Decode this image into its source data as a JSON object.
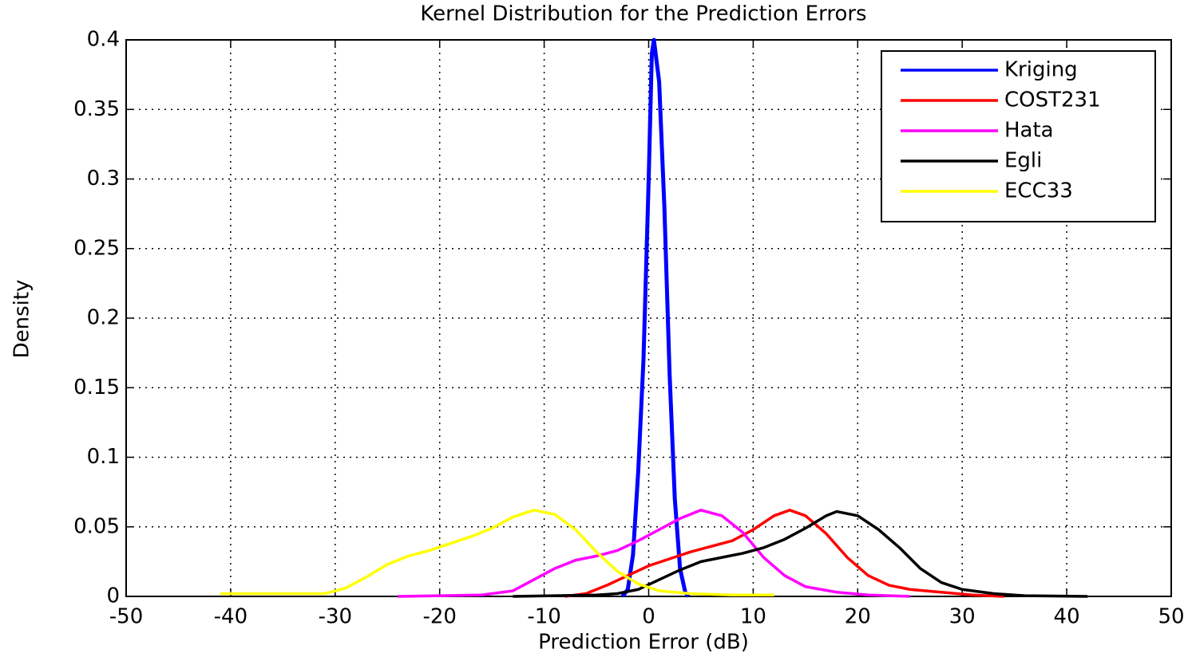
{
  "chart_data": {
    "type": "line",
    "title": "Kernel Distribution for the Prediction Errors",
    "xlabel": "Prediction Error (dB)",
    "ylabel": "Density",
    "xlim": [
      -50,
      50
    ],
    "xticks": [
      -50,
      -40,
      -30,
      -20,
      -10,
      0,
      10,
      20,
      30,
      40,
      50
    ],
    "ylim": [
      0,
      0.4
    ],
    "yticks": [
      0,
      0.05,
      0.1,
      0.15,
      0.2,
      0.25,
      0.3,
      0.35,
      0.4
    ],
    "grid": true,
    "legend": "upper right",
    "series": [
      {
        "name": "Kriging",
        "color": "#0000ff",
        "x": [
          -2.5,
          -2,
          -1.5,
          -1,
          -0.5,
          0,
          0.3,
          0.5,
          1,
          1.5,
          2,
          2.5,
          3,
          3.5,
          3.8
        ],
        "values": [
          0,
          0.005,
          0.03,
          0.09,
          0.17,
          0.3,
          0.39,
          0.4,
          0.37,
          0.28,
          0.16,
          0.07,
          0.02,
          0.003,
          0
        ]
      },
      {
        "name": "COST231",
        "color": "#ff0000",
        "x": [
          -8,
          -6,
          -4,
          -2,
          0,
          2,
          4,
          6,
          8,
          10,
          12,
          13.5,
          15,
          17,
          19,
          21,
          23,
          25,
          28,
          31,
          34
        ],
        "values": [
          0,
          0.002,
          0.008,
          0.015,
          0.022,
          0.027,
          0.032,
          0.036,
          0.04,
          0.048,
          0.058,
          0.062,
          0.058,
          0.045,
          0.028,
          0.015,
          0.008,
          0.005,
          0.003,
          0.001,
          0
        ]
      },
      {
        "name": "Hata",
        "color": "#ff00ff",
        "x": [
          -24,
          -16,
          -13,
          -11,
          -9,
          -7,
          -5,
          -3,
          -1,
          1,
          3,
          5,
          7,
          9,
          11,
          13,
          15,
          18,
          21,
          25
        ],
        "values": [
          0,
          0.001,
          0.004,
          0.012,
          0.02,
          0.026,
          0.029,
          0.033,
          0.04,
          0.048,
          0.056,
          0.062,
          0.058,
          0.046,
          0.028,
          0.015,
          0.007,
          0.003,
          0.001,
          0
        ]
      },
      {
        "name": "Egli",
        "color": "#000000",
        "x": [
          -13,
          -5,
          -3,
          -1,
          1,
          3,
          5,
          7,
          9,
          11,
          13,
          15,
          17,
          18,
          20,
          22,
          24,
          26,
          28,
          30,
          33,
          36,
          42
        ],
        "values": [
          0,
          0.001,
          0.002,
          0.005,
          0.012,
          0.019,
          0.025,
          0.028,
          0.031,
          0.035,
          0.041,
          0.049,
          0.058,
          0.061,
          0.058,
          0.048,
          0.035,
          0.02,
          0.01,
          0.005,
          0.002,
          0.0005,
          0
        ]
      },
      {
        "name": "ECC33",
        "color": "#ffff00",
        "x": [
          -41,
          -35,
          -31,
          -29,
          -27,
          -25,
          -23,
          -21,
          -19,
          -17,
          -15,
          -13,
          -11,
          -9,
          -7,
          -5,
          -3,
          -1,
          1,
          4,
          8,
          12
        ],
        "values": [
          0.002,
          0.002,
          0.002,
          0.006,
          0.014,
          0.023,
          0.029,
          0.033,
          0.038,
          0.043,
          0.049,
          0.057,
          0.062,
          0.059,
          0.048,
          0.032,
          0.018,
          0.009,
          0.004,
          0.002,
          0.001,
          0.001
        ]
      }
    ]
  }
}
